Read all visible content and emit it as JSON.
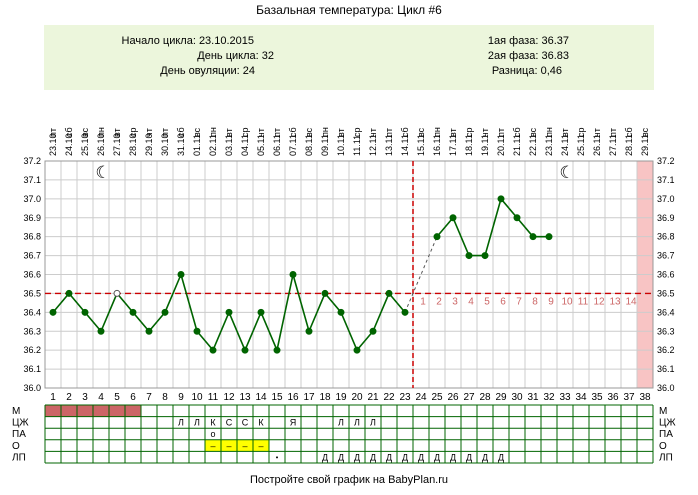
{
  "title": "Базальная температура: Цикл #6",
  "info": {
    "start_label": "Начало цикла:",
    "start_value": "23.10.2015",
    "day_label": "День цикла:",
    "day_value": "32",
    "ovulation_label": "День овуляции:",
    "ovulation_value": "24",
    "phase1_label": "1ая фаза:",
    "phase1_value": "36.37",
    "phase2_label": "2ая фаза:",
    "phase2_value": "36.83",
    "diff_label": "Разница:",
    "diff_value": "0,46"
  },
  "footer": "Постройте свой график на BabyPlan.ru",
  "colors": {
    "line": "#006400",
    "point": "#006400",
    "coverline": "#cc0000",
    "period": "#cc6666",
    "highlight": "#ffff00",
    "luteal_label": "#cc6666",
    "end_band": "#f8c4c4",
    "grid": "#cccccc",
    "table_grid": "#006400"
  },
  "icons": [
    "moon-icon"
  ],
  "chart_data": {
    "type": "line",
    "title": "Базальная температура: Цикл #6",
    "x": [
      1,
      2,
      3,
      4,
      5,
      6,
      7,
      8,
      9,
      10,
      11,
      12,
      13,
      14,
      15,
      16,
      17,
      18,
      19,
      20,
      21,
      22,
      23,
      24,
      25,
      26,
      27,
      28,
      29,
      30,
      31,
      32,
      33,
      34,
      35,
      36,
      37,
      38
    ],
    "dates": [
      "23.10",
      "24.10",
      "25.10",
      "26.10",
      "27.10",
      "28.10",
      "29.10",
      "30.10",
      "31.10",
      "01.11",
      "02.11",
      "03.11",
      "04.11",
      "05.11",
      "06.11",
      "07.11",
      "08.11",
      "09.11",
      "10.11",
      "11.11",
      "12.11",
      "13.11",
      "14.11",
      "15.11",
      "16.11",
      "17.11",
      "18.11",
      "19.11",
      "20.11",
      "21.11",
      "22.11",
      "23.11",
      "24.11",
      "25.11",
      "26.11",
      "27.11",
      "28.11",
      "29.11"
    ],
    "weekdays": [
      "пт",
      "сб",
      "вс",
      "пн",
      "вт",
      "ср",
      "чт",
      "пт",
      "сб",
      "вс",
      "пн",
      "вт",
      "ср",
      "чт",
      "пт",
      "сб",
      "вс",
      "пн",
      "вт",
      "ср",
      "чт",
      "пт",
      "сб",
      "вс",
      "пн",
      "вт",
      "ср",
      "чт",
      "пт",
      "сб",
      "вс",
      "пн",
      "вт",
      "ср",
      "чт",
      "пт",
      "сб",
      "вс"
    ],
    "values": [
      36.4,
      36.5,
      36.4,
      36.3,
      36.5,
      36.4,
      36.3,
      36.4,
      36.6,
      36.3,
      36.2,
      36.4,
      36.2,
      36.4,
      36.2,
      36.6,
      36.3,
      36.5,
      36.4,
      36.2,
      36.3,
      36.5,
      36.4,
      null,
      36.8,
      36.9,
      36.7,
      36.7,
      37.0,
      36.9,
      36.8,
      36.8,
      null,
      null,
      null,
      null,
      null,
      null
    ],
    "hollow_points": [
      5
    ],
    "dashed_gap": [
      23,
      25
    ],
    "coverline": 36.5,
    "ovulation_day": 24,
    "luteal_labels": [
      "1",
      "2",
      "3",
      "4",
      "5",
      "6",
      "7",
      "8",
      "9",
      "10",
      "11",
      "12",
      "13",
      "14"
    ],
    "ylim": [
      36.0,
      37.2
    ],
    "y_ticks": [
      "36.0",
      "36.1",
      "36.2",
      "36.3",
      "36.4",
      "36.5",
      "36.6",
      "36.7",
      "36.8",
      "36.9",
      "37.0",
      "37.1",
      "37.2"
    ],
    "moon_days": [
      4,
      33
    ],
    "grid": true
  },
  "table": {
    "row_labels": [
      "М",
      "ЦЖ",
      "ПА",
      "О",
      "ЛП"
    ],
    "period_days": [
      1,
      2,
      3,
      4,
      5,
      6
    ],
    "cervical": [
      {
        "day": 9,
        "text": "Л"
      },
      {
        "day": 10,
        "text": "Л"
      },
      {
        "day": 11,
        "text": "К"
      },
      {
        "day": 12,
        "text": "С"
      },
      {
        "day": 13,
        "text": "С"
      },
      {
        "day": 14,
        "text": "К"
      },
      {
        "day": 16,
        "text": "Я"
      },
      {
        "day": 19,
        "text": "Л"
      },
      {
        "day": 20,
        "text": "Л"
      },
      {
        "day": 21,
        "text": "Л"
      }
    ],
    "pa": [
      {
        "day": 11,
        "text": "о"
      }
    ],
    "o_highlight_days": [
      11,
      12,
      13,
      14
    ],
    "o_marks": [
      {
        "day": 11,
        "text": "–"
      },
      {
        "day": 12,
        "text": "–"
      },
      {
        "day": 13,
        "text": "–"
      },
      {
        "day": 14,
        "text": "–"
      }
    ],
    "lp": [
      {
        "day": 18,
        "text": "Д"
      },
      {
        "day": 19,
        "text": "Д"
      },
      {
        "day": 20,
        "text": "Д"
      },
      {
        "day": 21,
        "text": "Д"
      },
      {
        "day": 22,
        "text": "Д"
      },
      {
        "day": 23,
        "text": "Д"
      },
      {
        "day": 24,
        "text": "Д"
      },
      {
        "day": 25,
        "text": "Д"
      },
      {
        "day": 26,
        "text": "Д"
      },
      {
        "day": 27,
        "text": "Д"
      },
      {
        "day": 28,
        "text": "Д"
      },
      {
        "day": 29,
        "text": "Д"
      }
    ],
    "lp_dot_day": 15
  }
}
